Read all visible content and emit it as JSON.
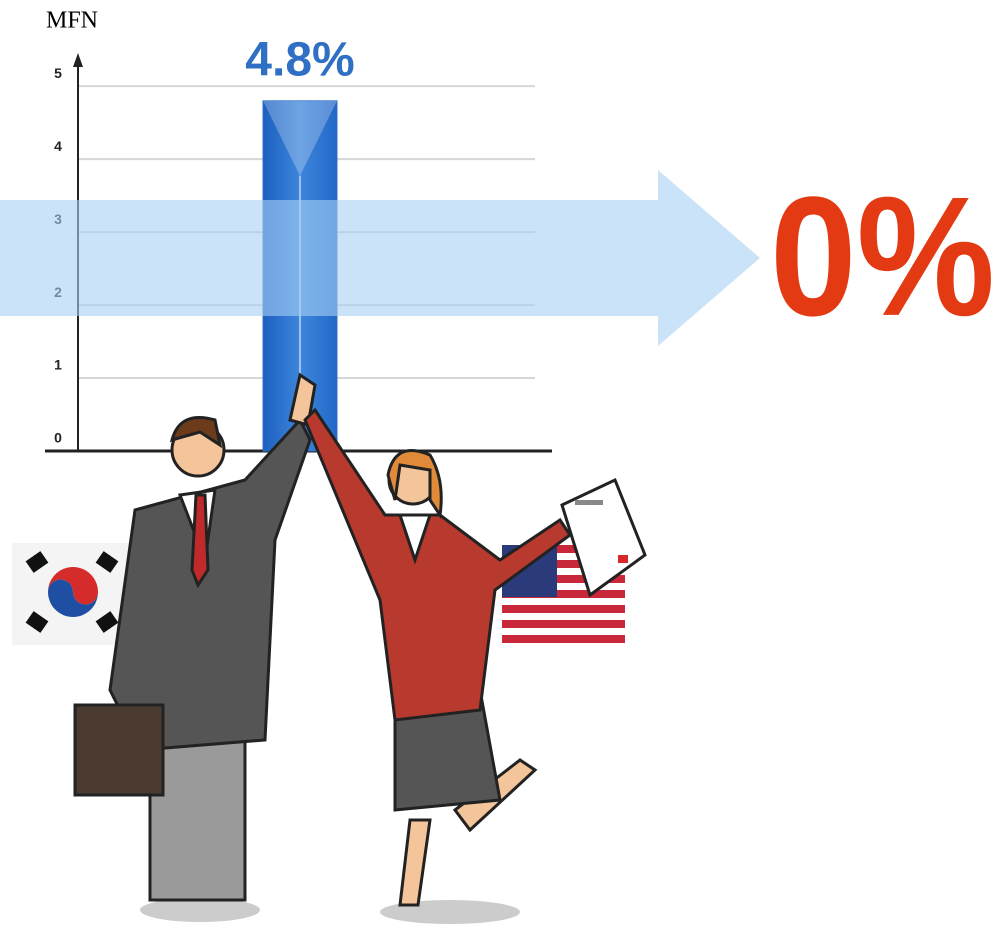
{
  "chart_data": {
    "type": "bar",
    "y_label": "MFN",
    "categories": [
      null
    ],
    "values": [
      4.8
    ],
    "value_labels": [
      "4.8%"
    ],
    "color": "#2f6fc4",
    "ylim": [
      0,
      5.4
    ],
    "yticks": [
      0,
      1,
      2,
      3,
      4,
      5
    ],
    "grid": true,
    "annotation": "0%"
  }
}
